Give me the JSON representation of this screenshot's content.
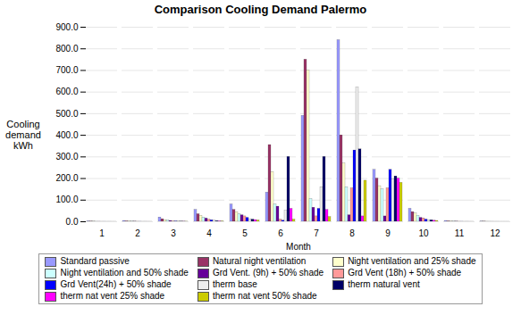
{
  "chart_data": {
    "type": "bar",
    "title": "Comparison Cooling Demand Palermo",
    "xlabel": "Month",
    "ylabel": "Cooling\ndemand\nkWh",
    "categories": [
      "1",
      "2",
      "3",
      "4",
      "5",
      "6",
      "7",
      "8",
      "9",
      "10",
      "11",
      "12"
    ],
    "ylim": [
      0,
      900
    ],
    "yticks": [
      {
        "value": 0,
        "label": "0.0"
      },
      {
        "value": 100,
        "label": "100.0"
      },
      {
        "value": 200,
        "label": "200.0"
      },
      {
        "value": 300,
        "label": "300.0"
      },
      {
        "value": 400,
        "label": "400.0"
      },
      {
        "value": 500,
        "label": "500.0"
      },
      {
        "value": 600,
        "label": "600.0"
      },
      {
        "value": 700,
        "label": "700.0"
      },
      {
        "value": 800,
        "label": "800.0"
      },
      {
        "value": 900,
        "label": "900.0"
      }
    ],
    "grid": true,
    "legend": "bottom",
    "series": [
      {
        "name": "Standard passive",
        "color": "#9999ff",
        "values": [
          2,
          4,
          20,
          55,
          80,
          135,
          490,
          840,
          240,
          60,
          4,
          1
        ]
      },
      {
        "name": "Natural night ventilation",
        "color": "#993366",
        "values": [
          1,
          2,
          12,
          35,
          55,
          355,
          750,
          400,
          200,
          45,
          2,
          0.5
        ]
      },
      {
        "name": "Night ventilation and 25% shade",
        "color": "#ffffcc",
        "values": [
          0.5,
          1.5,
          8,
          28,
          45,
          230,
          700,
          270,
          165,
          38,
          1.5,
          0.3
        ]
      },
      {
        "name": "Night ventilation and 50% shade",
        "color": "#ccffff",
        "values": [
          0.3,
          1,
          6,
          20,
          35,
          80,
          105,
          160,
          150,
          28,
          1,
          0.2
        ]
      },
      {
        "name": "Grd Vent. (9h) + 50% shade",
        "color": "#660099",
        "values": [
          0.2,
          0.5,
          4,
          15,
          30,
          70,
          65,
          30,
          25,
          18,
          0.5,
          0.1
        ]
      },
      {
        "name": "Grd Vent (18h) + 50% shade",
        "color": "#ff9999",
        "values": [
          0.1,
          0.3,
          2,
          10,
          25,
          10,
          25,
          155,
          155,
          16,
          0.3,
          0.05
        ]
      },
      {
        "name": "Grd Vent(24h) + 50% shade",
        "color": "#0000ff",
        "values": [
          0.1,
          0.2,
          1.5,
          7,
          18,
          5,
          60,
          330,
          240,
          10,
          0.2,
          0.05
        ]
      },
      {
        "name": "therm base",
        "color": "#eeeeee",
        "values": [
          0.05,
          0.1,
          1,
          5,
          12,
          50,
          160,
          620,
          195,
          8,
          0.1,
          0.02
        ]
      },
      {
        "name": "therm natural vent",
        "color": "#000066",
        "values": [
          0.05,
          0.1,
          0.8,
          3,
          10,
          300,
          300,
          335,
          210,
          7,
          0.1,
          0.02
        ]
      },
      {
        "name": "therm nat vent 25% shade",
        "color": "#ff00ff",
        "values": [
          0.02,
          0.05,
          0.5,
          2,
          8,
          60,
          55,
          25,
          200,
          5,
          0.05,
          0.01
        ]
      },
      {
        "name": "therm nat vent 50% shade",
        "color": "#cccc00",
        "values": [
          0.01,
          0.03,
          0.4,
          1.5,
          6,
          10,
          22,
          190,
          180,
          4,
          0.03,
          0.005
        ]
      }
    ]
  }
}
